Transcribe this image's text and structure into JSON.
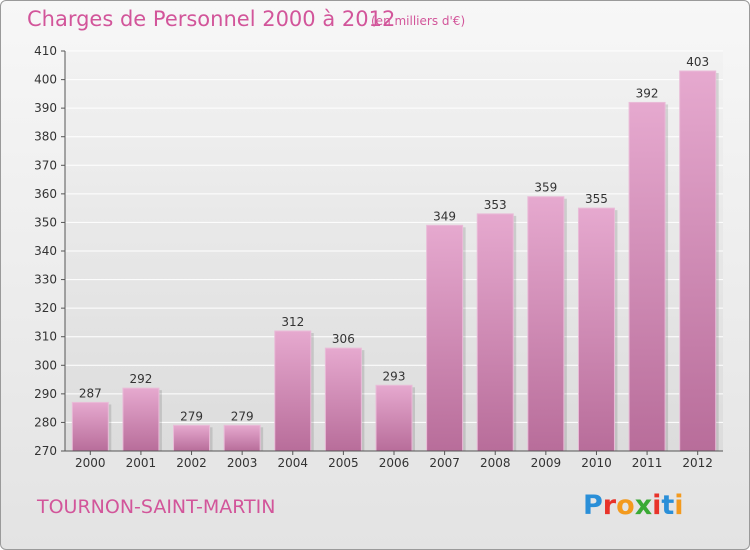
{
  "chart_data": {
    "type": "bar",
    "title": "Charges de Personnel 2000 à 2012",
    "subtitle": "(en milliers d'€)",
    "categories": [
      "2000",
      "2001",
      "2002",
      "2003",
      "2004",
      "2005",
      "2006",
      "2007",
      "2008",
      "2009",
      "2010",
      "2011",
      "2012"
    ],
    "values": [
      287,
      292,
      279,
      279,
      312,
      306,
      293,
      349,
      353,
      359,
      355,
      392,
      403
    ],
    "ylim": [
      270,
      410
    ],
    "yticks": [
      270,
      280,
      290,
      300,
      310,
      320,
      330,
      340,
      350,
      360,
      370,
      380,
      390,
      400,
      410
    ],
    "grid": true,
    "bar_color": "#d98cbb",
    "grid_color": "#ffffff"
  },
  "footer": {
    "commune": "TOURNON-SAINT-MARTIN",
    "logo_letters": [
      {
        "char": "P",
        "color": "#2a8fd8"
      },
      {
        "char": "r",
        "color": "#e8332a"
      },
      {
        "char": "o",
        "color": "#f39a1e"
      },
      {
        "char": "x",
        "color": "#3aaa35"
      },
      {
        "char": "i",
        "color": "#e8332a"
      },
      {
        "char": "t",
        "color": "#2a8fd8"
      },
      {
        "char": "i",
        "color": "#f39a1e"
      }
    ]
  }
}
